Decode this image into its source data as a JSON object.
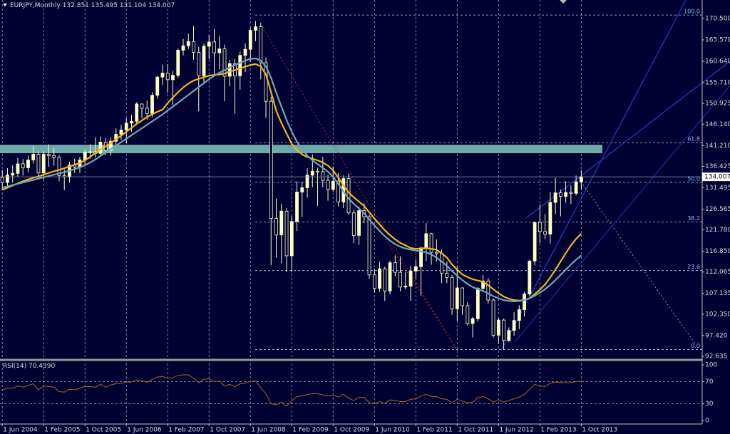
{
  "chart_data": {
    "type": "candlestick",
    "symbol": "EURJPY,Monthly",
    "x": [
      "2004-06-01",
      "2004-07-01",
      "2004-08-01",
      "2004-09-01",
      "2004-10-01",
      "2004-11-01",
      "2004-12-01",
      "2005-01-01",
      "2005-02-01",
      "2005-03-01",
      "2005-04-01",
      "2005-05-01",
      "2005-06-01",
      "2005-07-01",
      "2005-08-01",
      "2005-09-01",
      "2005-10-01",
      "2005-11-01",
      "2005-12-01",
      "2006-01-01",
      "2006-02-01",
      "2006-03-01",
      "2006-04-01",
      "2006-05-01",
      "2006-06-01",
      "2006-07-01",
      "2006-08-01",
      "2006-09-01",
      "2006-10-01",
      "2006-11-01",
      "2006-12-01",
      "2007-01-01",
      "2007-02-01",
      "2007-03-01",
      "2007-04-01",
      "2007-05-01",
      "2007-06-01",
      "2007-07-01",
      "2007-08-01",
      "2007-09-01",
      "2007-10-01",
      "2007-11-01",
      "2007-12-01",
      "2008-01-01",
      "2008-02-01",
      "2008-03-01",
      "2008-04-01",
      "2008-05-01",
      "2008-06-01",
      "2008-07-01",
      "2008-08-01",
      "2008-09-01",
      "2008-10-01",
      "2008-11-01",
      "2008-12-01",
      "2009-01-01",
      "2009-02-01",
      "2009-03-01",
      "2009-04-01",
      "2009-05-01",
      "2009-06-01",
      "2009-07-01",
      "2009-08-01",
      "2009-09-01",
      "2009-10-01",
      "2009-11-01",
      "2009-12-01",
      "2010-01-01",
      "2010-02-01",
      "2010-03-01",
      "2010-04-01",
      "2010-05-01",
      "2010-06-01",
      "2010-07-01",
      "2010-08-01",
      "2010-09-01",
      "2010-10-01",
      "2010-11-01",
      "2010-12-01",
      "2011-01-01",
      "2011-02-01",
      "2011-03-01",
      "2011-04-01",
      "2011-05-01",
      "2011-06-01",
      "2011-07-01",
      "2011-08-01",
      "2011-09-01",
      "2011-10-01",
      "2011-11-01",
      "2011-12-01",
      "2012-01-01",
      "2012-02-01",
      "2012-03-01",
      "2012-04-01",
      "2012-05-01",
      "2012-06-01",
      "2012-07-01",
      "2012-08-01",
      "2012-09-01",
      "2012-10-01",
      "2012-11-01",
      "2012-12-01",
      "2013-01-01",
      "2013-02-01",
      "2013-03-01",
      "2013-04-01",
      "2013-05-01",
      "2013-06-01",
      "2013-07-01",
      "2013-08-01",
      "2013-09-01",
      "2013-10-01"
    ],
    "open": [
      133.9,
      132.7,
      134.4,
      134.8,
      137.0,
      136.1,
      137.9,
      139.2,
      134.9,
      139.2,
      138.9,
      138.5,
      134.3,
      134.0,
      136.7,
      136.3,
      137.9,
      139.7,
      139.8,
      139.4,
      142.0,
      140.1,
      142.2,
      143.8,
      144.8,
      146.4,
      146.8,
      150.8,
      149.8,
      148.6,
      152.8,
      157.0,
      157.9,
      156.4,
      157.4,
      163.2,
      164.2,
      165.2,
      162.7,
      157.3,
      164.1,
      165.1,
      162.6,
      163.5,
      157.2,
      160.1,
      157.3,
      162.0,
      163.4,
      167.8,
      168.6,
      160.3,
      151.4,
      124.4,
      120.6,
      126.1,
      115.8,
      123.7,
      130.5,
      131.5,
      134.4,
      135.3,
      135.2,
      133.2,
      131.1,
      133.0,
      128.2,
      133.6,
      125.7,
      120.5,
      126.2,
      124.8,
      111.4,
      108.3,
      112.8,
      107.7,
      114.2,
      112.0,
      108.6,
      108.8,
      112.3,
      113.3,
      117.6,
      120.9,
      116.6,
      116.3,
      111.8,
      110.8,
      103.6,
      108.4,
      104.3,
      100.2,
      101.3,
      108.3,
      110.0,
      105.6,
      97.5,
      101.0,
      96.3,
      98.6,
      100.9,
      103.4,
      107.0,
      114.6,
      123.5,
      121.4,
      120.8,
      128.1,
      130.3,
      129.5,
      130.4,
      130.2,
      132.851
    ],
    "high": [
      135.5,
      136.0,
      136.7,
      138.3,
      138.1,
      138.9,
      141.1,
      139.9,
      140.0,
      141.5,
      140.7,
      139.0,
      135.7,
      137.5,
      138.2,
      138.6,
      140.3,
      141.5,
      143.1,
      143.3,
      142.9,
      143.1,
      145.2,
      146.0,
      147.6,
      148.3,
      151.2,
      150.9,
      151.6,
      153.5,
      157.3,
      159.9,
      160.0,
      158.4,
      163.6,
      165.8,
      167.0,
      168.8,
      164.0,
      164.7,
      166.7,
      168.1,
      166.5,
      164.5,
      161.0,
      161.1,
      162.9,
      164.8,
      168.5,
      169.9,
      169.5,
      161.5,
      152.5,
      129.0,
      127.8,
      126.8,
      125.0,
      133.0,
      132.9,
      136.0,
      139.2,
      136.1,
      138.6,
      134.5,
      136.4,
      134.9,
      134.4,
      134.8,
      126.4,
      127.2,
      127.9,
      125.3,
      112.8,
      114.4,
      113.3,
      114.7,
      115.9,
      115.6,
      112.1,
      113.5,
      114.9,
      118.0,
      123.3,
      121.1,
      119.6,
      117.2,
      114.5,
      111.4,
      113.3,
      108.5,
      105.1,
      101.7,
      108.6,
      111.4,
      110.6,
      106.0,
      101.5,
      101.3,
      99.3,
      102.8,
      104.4,
      107.5,
      114.9,
      123.7,
      127.7,
      125.4,
      130.5,
      133.8,
      131.1,
      133.0,
      132.0,
      134.3,
      135.495
    ],
    "low": [
      131.0,
      131.9,
      132.7,
      134.0,
      134.3,
      135.0,
      137.1,
      133.5,
      133.4,
      136.3,
      136.6,
      133.0,
      130.9,
      132.7,
      134.9,
      134.9,
      136.9,
      138.2,
      138.5,
      138.8,
      139.0,
      138.9,
      141.3,
      142.5,
      141.7,
      144.4,
      146.2,
      147.5,
      147.2,
      147.8,
      152.0,
      155.2,
      153.4,
      150.6,
      156.8,
      162.0,
      163.5,
      161.0,
      149.1,
      155.5,
      161.1,
      157.6,
      158.8,
      151.4,
      154.9,
      148.5,
      154.1,
      158.2,
      160.5,
      165.3,
      156.5,
      147.6,
      113.6,
      115.4,
      114.1,
      112.1,
      112.0,
      121.5,
      124.7,
      129.2,
      131.6,
      127.3,
      131.6,
      128.5,
      130.6,
      127.2,
      126.8,
      125.3,
      118.7,
      118.3,
      123.3,
      110.5,
      107.3,
      107.5,
      105.4,
      106.9,
      111.1,
      107.6,
      108.0,
      105.4,
      110.6,
      106.6,
      114.6,
      113.7,
      114.5,
      109.5,
      109.5,
      102.2,
      100.8,
      102.2,
      99.8,
      97.0,
      100.6,
      107.6,
      104.8,
      97.0,
      95.6,
      94.1,
      95.9,
      97.4,
      98.9,
      101.8,
      106.6,
      113.6,
      118.7,
      119.6,
      118.6,
      125.4,
      124.9,
      128.0,
      127.7,
      129.7,
      131.104
    ],
    "close": [
      132.7,
      134.4,
      134.8,
      137.0,
      136.1,
      137.9,
      139.2,
      134.9,
      139.2,
      138.9,
      138.5,
      134.3,
      134.0,
      136.7,
      136.3,
      137.9,
      139.7,
      139.8,
      139.4,
      142.0,
      140.1,
      142.2,
      143.8,
      144.8,
      146.4,
      146.8,
      150.8,
      149.8,
      148.6,
      152.8,
      157.0,
      157.9,
      156.4,
      157.4,
      163.2,
      164.2,
      165.2,
      162.7,
      157.3,
      164.1,
      165.1,
      162.6,
      163.5,
      157.2,
      160.1,
      157.3,
      162.0,
      163.4,
      167.8,
      168.6,
      160.3,
      151.4,
      124.4,
      120.6,
      126.1,
      115.8,
      123.7,
      130.5,
      131.5,
      134.4,
      135.3,
      135.2,
      133.2,
      131.1,
      133.0,
      128.2,
      133.6,
      125.7,
      120.5,
      126.2,
      124.8,
      111.4,
      108.3,
      112.8,
      107.7,
      114.2,
      112.0,
      108.6,
      108.8,
      112.3,
      113.3,
      117.6,
      120.9,
      116.6,
      116.3,
      111.8,
      110.8,
      103.6,
      108.4,
      104.3,
      100.2,
      101.3,
      108.3,
      110.0,
      105.6,
      97.5,
      101.0,
      96.3,
      98.6,
      100.9,
      103.4,
      107.0,
      114.6,
      123.5,
      121.4,
      120.8,
      128.1,
      130.3,
      129.5,
      130.4,
      130.2,
      132.851,
      134.007
    ],
    "up_color": "#ffffc0",
    "down_color": "#000033",
    "lines": [
      {
        "color": "#f2b51c",
        "values": [
          131.0,
          131.5,
          132.0,
          132.5,
          133.0,
          133.4,
          133.8,
          134.1,
          134.5,
          134.9,
          135.3,
          135.6,
          136.0,
          136.4,
          136.8,
          137.2,
          137.8,
          138.6,
          139.5,
          140.3,
          141.0,
          141.8,
          142.7,
          143.5,
          144.4,
          145.3,
          146.2,
          147.0,
          147.8,
          148.4,
          149.0,
          149.5,
          151.0,
          152.3,
          153.5,
          154.6,
          155.5,
          156.2,
          156.6,
          157.0,
          157.3,
          157.5,
          157.6,
          157.8,
          158.3,
          158.6,
          159.0,
          159.4,
          159.8,
          160.0,
          159.5,
          157.6,
          153.5,
          149.2,
          146.4,
          144.0,
          141.6,
          140.2,
          139.2,
          138.6,
          138.2,
          137.8,
          137.3,
          136.6,
          135.5,
          133.8,
          132.0,
          130.4,
          129.3,
          128.3,
          127.3,
          125.8,
          124.4,
          123.0,
          121.7,
          120.6,
          119.6,
          118.8,
          118.2,
          117.6,
          117.4,
          117.5,
          117.6,
          117.4,
          117.2,
          116.4,
          115.4,
          113.8,
          112.6,
          111.5,
          110.9,
          110.4,
          110.1,
          109.8,
          109.0,
          108.1,
          107.2,
          106.4,
          105.9,
          105.6,
          105.5,
          105.6,
          106.0,
          107.0,
          108.0,
          109.2,
          110.8,
          112.6,
          114.5,
          116.4,
          118.2,
          119.7,
          120.9
        ]
      },
      {
        "color": "#6ea7b6",
        "values": [
          131.5,
          131.8,
          132.1,
          132.4,
          132.7,
          133.0,
          133.3,
          133.6,
          133.9,
          134.2,
          134.5,
          134.8,
          135.1,
          135.4,
          135.8,
          136.2,
          136.7,
          137.3,
          138.0,
          138.8,
          139.6,
          140.4,
          141.2,
          142.0,
          142.8,
          143.6,
          144.4,
          145.2,
          146.0,
          146.8,
          147.6,
          148.4,
          149.3,
          150.2,
          151.1,
          152.0,
          152.9,
          153.8,
          154.7,
          155.6,
          156.5,
          157.3,
          158.0,
          158.6,
          159.2,
          159.8,
          160.3,
          160.8,
          161.2,
          161.3,
          160.8,
          159.5,
          156.8,
          153.4,
          150.2,
          147.1,
          144.4,
          142.1,
          140.3,
          138.9,
          137.8,
          136.9,
          136.1,
          135.2,
          134.0,
          132.4,
          130.6,
          129.0,
          127.8,
          126.7,
          125.6,
          124.2,
          122.8,
          121.5,
          120.3,
          119.3,
          118.5,
          117.9,
          117.5,
          117.2,
          117.0,
          116.8,
          116.6,
          116.1,
          115.4,
          114.5,
          113.5,
          112.3,
          111.2,
          110.2,
          109.3,
          108.6,
          108.1,
          107.7,
          107.1,
          106.5,
          106.0,
          105.6,
          105.4,
          105.3,
          105.4,
          105.6,
          106.0,
          106.6,
          107.3,
          108.1,
          109.1,
          110.2,
          111.4,
          112.6,
          113.8,
          114.9,
          115.9
        ]
      }
    ],
    "xlim": [
      "2004-05-18",
      "2015-09-13"
    ],
    "xticks": [
      {
        "value": "2004-06-01",
        "label": "1 Jun 2004"
      },
      {
        "value": "2005-02-01",
        "label": "1 Feb 2005"
      },
      {
        "value": "2005-10-01",
        "label": "1 Oct 2005"
      },
      {
        "value": "2006-06-01",
        "label": "1 Jun 2006"
      },
      {
        "value": "2007-02-01",
        "label": "1 Feb 2007"
      },
      {
        "value": "2007-10-01",
        "label": "1 Oct 2007"
      },
      {
        "value": "2008-06-01",
        "label": "1 Jun 2008"
      },
      {
        "value": "2009-02-01",
        "label": "1 Feb 2009"
      },
      {
        "value": "2009-10-01",
        "label": "1 Oct 2009"
      },
      {
        "value": "2010-06-01",
        "label": "1 Jun 2010"
      },
      {
        "value": "2011-02-01",
        "label": "1 Feb 2011"
      },
      {
        "value": "2011-10-01",
        "label": "1 Oct 2011"
      },
      {
        "value": "2012-06-01",
        "label": "1 Jun 2012"
      },
      {
        "value": "2013-02-01",
        "label": "1 Feb 2013"
      },
      {
        "value": "2013-10-01",
        "label": "1 Oct 2013"
      }
    ],
    "ylim": [
      91.81,
      174.77
    ],
    "yticks": [
      {
        "value": 170.5,
        "label": "170.500"
      },
      {
        "value": 165.57,
        "label": "165.570"
      },
      {
        "value": 160.64,
        "label": "160.640"
      },
      {
        "value": 155.71,
        "label": "155.710"
      },
      {
        "value": 150.925,
        "label": "150.925"
      },
      {
        "value": 146.14,
        "label": "146.140"
      },
      {
        "value": 141.21,
        "label": "141.210"
      },
      {
        "value": 136.425,
        "label": "136.425"
      },
      {
        "value": 131.495,
        "label": "131.495"
      },
      {
        "value": 126.565,
        "label": "126.565"
      },
      {
        "value": 121.78,
        "label": "121.780"
      },
      {
        "value": 116.85,
        "label": "116.850"
      },
      {
        "value": 112.065,
        "label": "112.065"
      },
      {
        "value": 107.135,
        "label": "107.135"
      },
      {
        "value": 102.35,
        "label": "102.350"
      },
      {
        "value": 97.42,
        "label": "97.420"
      },
      {
        "value": 92.635,
        "label": "92.635"
      }
    ],
    "grid": true,
    "zone": {
      "from": 139.45,
      "to": 141.4,
      "color": "#6fa8a8"
    },
    "fibonacci": [
      {
        "label": "100.0",
        "price": 171.3
      },
      {
        "label": "61.8",
        "price": 141.9
      },
      {
        "label": "50.0",
        "price": 132.75
      },
      {
        "label": "38.2",
        "price": 123.6
      },
      {
        "label": "23.6",
        "price": 112.4
      },
      {
        "label": "0.0",
        "price": 94.2
      }
    ],
    "rsi": {
      "name": "RSI(14)",
      "current_label": "70.4390",
      "color": "#b4621e",
      "ylim": [
        -6.4,
        106.4
      ],
      "yticks": [
        100,
        70,
        30,
        0
      ],
      "levels": [
        70,
        30
      ],
      "values": [
        55,
        58,
        58,
        62,
        60,
        63,
        66,
        55,
        62,
        61,
        60,
        52,
        51,
        56,
        55,
        58,
        61,
        61,
        60,
        65,
        60,
        64,
        66,
        67,
        69,
        69,
        73,
        71,
        69,
        74,
        78,
        79,
        76,
        77,
        81,
        82,
        82,
        76,
        68,
        74,
        75,
        70,
        71,
        62,
        65,
        61,
        66,
        67,
        71,
        71,
        59,
        48,
        30,
        28,
        33,
        26,
        35,
        43,
        44,
        47,
        48,
        48,
        46,
        44,
        46,
        42,
        47,
        40,
        36,
        42,
        41,
        32,
        30,
        34,
        31,
        37,
        36,
        34,
        34,
        38,
        39,
        44,
        47,
        43,
        43,
        39,
        38,
        32,
        38,
        35,
        32,
        33,
        41,
        43,
        39,
        33,
        37,
        33,
        36,
        39,
        42,
        47,
        56,
        65,
        62,
        61,
        67,
        69,
        68,
        68,
        68,
        70,
        70.439
      ]
    }
  }
}
